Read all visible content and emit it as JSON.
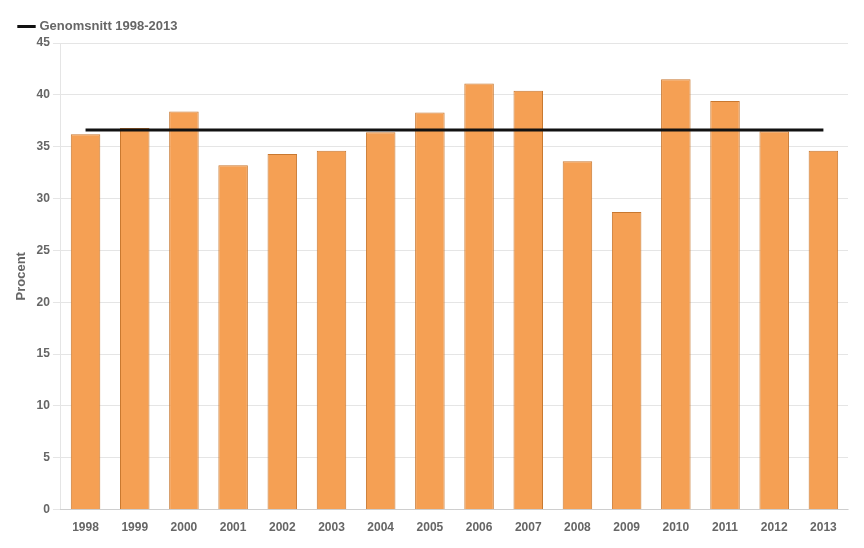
{
  "chart_data": {
    "type": "bar",
    "ylabel": "Procent",
    "categories": [
      "1998",
      "1999",
      "2000",
      "2001",
      "2002",
      "2003",
      "2004",
      "2005",
      "2006",
      "2007",
      "2008",
      "2009",
      "2010",
      "2011",
      "2012",
      "2013"
    ],
    "series": [
      {
        "type": "bar",
        "color": "#F5A054",
        "values": [
          36.2,
          36.8,
          38.4,
          33.2,
          34.3,
          34.6,
          36.4,
          38.3,
          41.1,
          40.4,
          33.6,
          28.7,
          41.5,
          39.4,
          36.5,
          34.6
        ]
      },
      {
        "name": "Genomsnitt 1998-2013",
        "type": "line",
        "color": "#111111",
        "values": [
          36.6,
          36.6,
          36.6,
          36.6,
          36.6,
          36.6,
          36.6,
          36.6,
          36.6,
          36.6,
          36.6,
          36.6,
          36.6,
          36.6,
          36.6,
          36.6
        ]
      }
    ],
    "ylim": [
      0,
      45
    ],
    "yticks": [
      0,
      5,
      10,
      15,
      20,
      25,
      30,
      35,
      40,
      45
    ],
    "grid": true,
    "legend": "upper left"
  }
}
